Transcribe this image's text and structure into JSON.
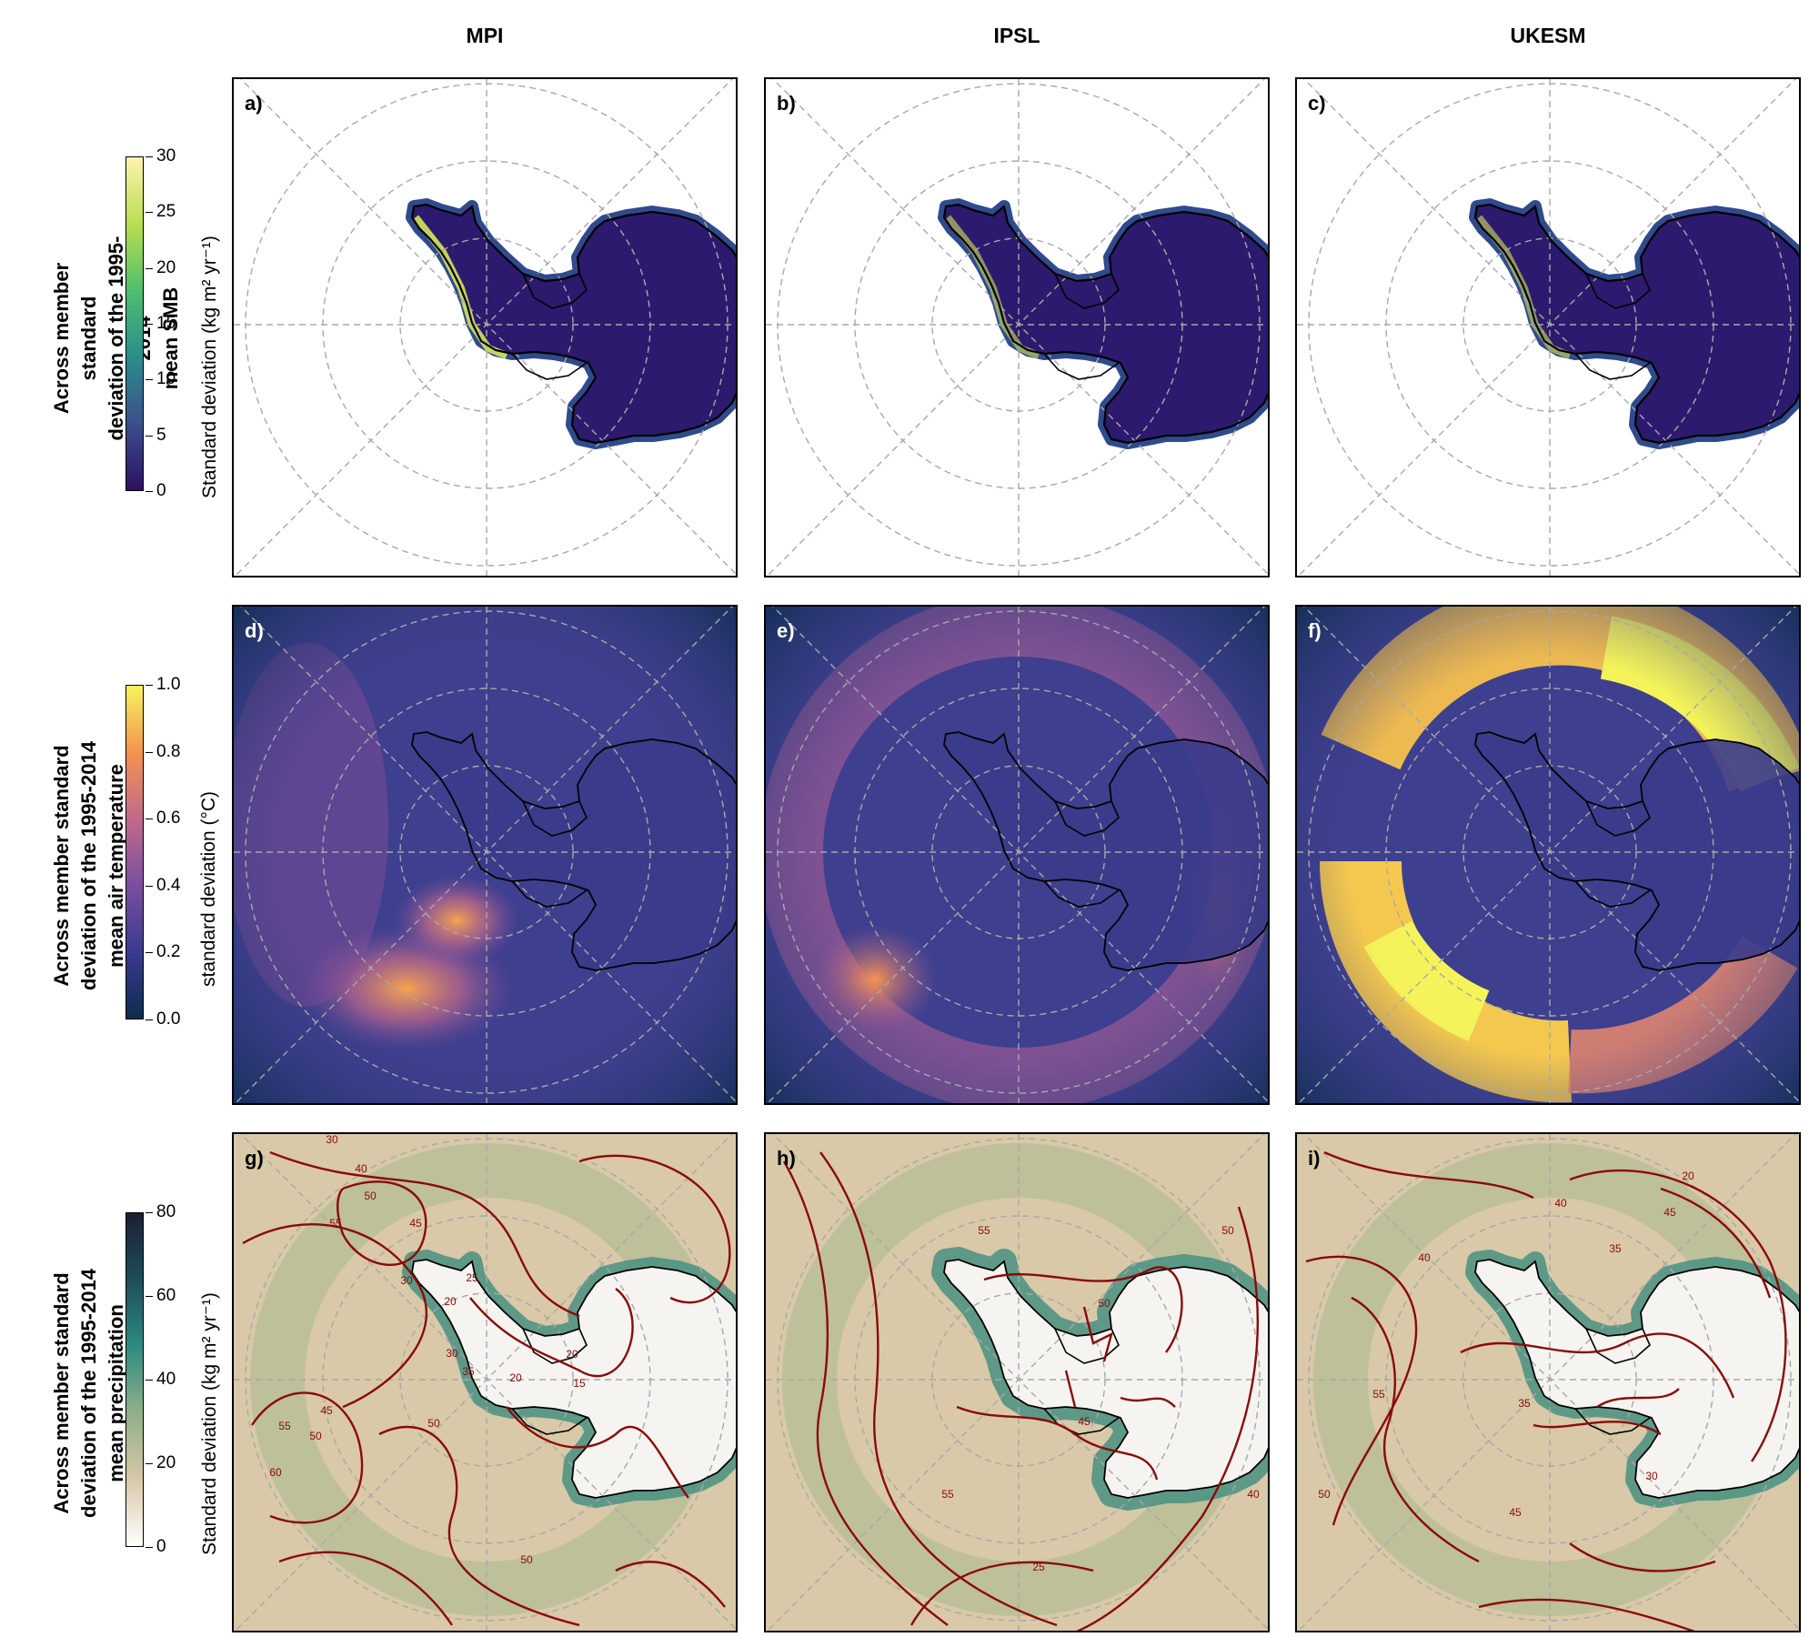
{
  "columns": [
    "MPI",
    "IPSL",
    "UKESM"
  ],
  "rows": [
    {
      "title_lines": [
        "Across member standard",
        "deviation of the 1995-2014",
        "mean SMB"
      ],
      "colorbar": {
        "label": "Standard deviation (kg m² yr⁻¹)",
        "ticks": [
          "0",
          "5",
          "10",
          "15",
          "20",
          "25",
          "30"
        ],
        "range": [
          0,
          30
        ],
        "colors": [
          "#2c1160",
          "#3b4f8c",
          "#2a8e8c",
          "#4fbf6e",
          "#b9de4f",
          "#fdf3b0"
        ]
      },
      "panel_labels": [
        "a)",
        "b)",
        "c)"
      ]
    },
    {
      "title_lines": [
        "Across member standard",
        "deviation of the 1995-2014",
        "mean air temperature"
      ],
      "colorbar": {
        "label": "standard deviation (°C)",
        "ticks": [
          "0.0",
          "0.2",
          "0.4",
          "0.6",
          "0.8",
          "1.0"
        ],
        "range": [
          0,
          1
        ],
        "colors": [
          "#0d2c4e",
          "#3b3a8f",
          "#7a4ea0",
          "#c16a8a",
          "#f3934f",
          "#f7f45e"
        ]
      },
      "panel_labels": [
        "d)",
        "e)",
        "f)"
      ]
    },
    {
      "title_lines": [
        "Across member standard",
        "deviation of the 1995-2014",
        "mean precipitation"
      ],
      "colorbar": {
        "label": "Standard deviation (kg m² yr⁻¹)",
        "ticks": [
          "0",
          "20",
          "40",
          "60",
          "80"
        ],
        "range": [
          0,
          80
        ],
        "colors": [
          "#ffffff",
          "#d8c8a8",
          "#8fb08a",
          "#2f8a80",
          "#1e4d5a",
          "#1b1f33"
        ]
      },
      "panel_labels": [
        "g)",
        "h)",
        "i)"
      ],
      "contour_labels": [
        [
          "30",
          "40",
          "50",
          "55",
          "45",
          "30",
          "25",
          "20",
          "30",
          "35",
          "20",
          "45",
          "55",
          "60",
          "50",
          "50",
          "20",
          "15",
          "50"
        ],
        [
          "55",
          "50",
          "45",
          "55",
          "40",
          "50",
          "25"
        ],
        [
          "20",
          "40",
          "45",
          "40",
          "35",
          "35",
          "50",
          "55",
          "45",
          "30"
        ]
      ]
    }
  ],
  "colors": {
    "contour": "#8b0a0a",
    "graticule": "#a8a8a8",
    "coast": "#000000"
  }
}
